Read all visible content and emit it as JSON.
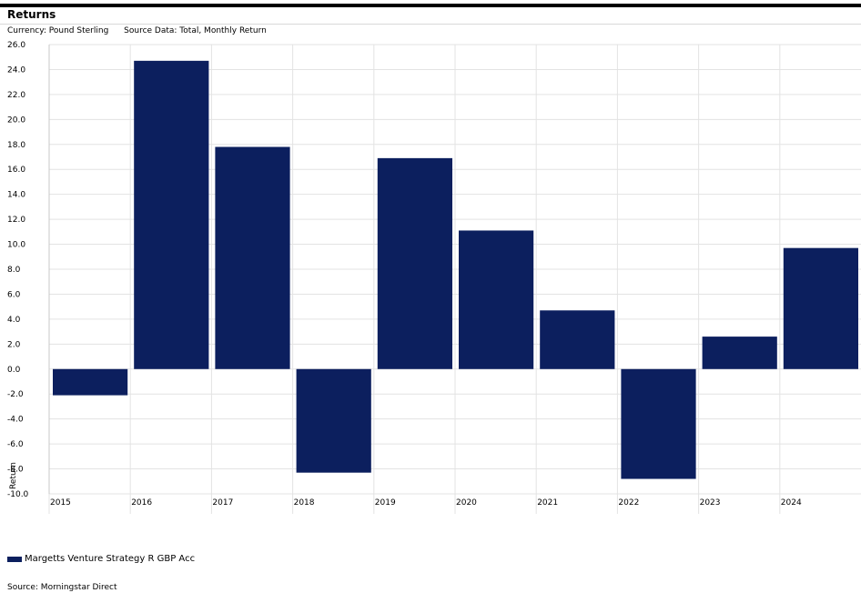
{
  "header": {
    "title": "Returns",
    "currency": "Currency: Pound Sterling",
    "source_data": "Source Data: Total, Monthly Return"
  },
  "chart_data": {
    "type": "bar",
    "categories": [
      "2015",
      "2016",
      "2017",
      "2018",
      "2019",
      "2020",
      "2021",
      "2022",
      "2023",
      "2024"
    ],
    "series": [
      {
        "name": "Margetts Venture Strategy R GBP Acc",
        "values": [
          -2.1,
          24.7,
          17.8,
          -8.3,
          16.9,
          11.1,
          4.7,
          -8.8,
          2.6,
          9.7
        ],
        "color": "#0c1f5e"
      }
    ],
    "ylabel": "Return",
    "xlabel": "",
    "ylim": [
      -10.0,
      26.0
    ],
    "ytick_step": 2.0,
    "grid": true,
    "legend_position": "bottom-left"
  },
  "footer": {
    "source": "Source: Morningstar Direct"
  }
}
